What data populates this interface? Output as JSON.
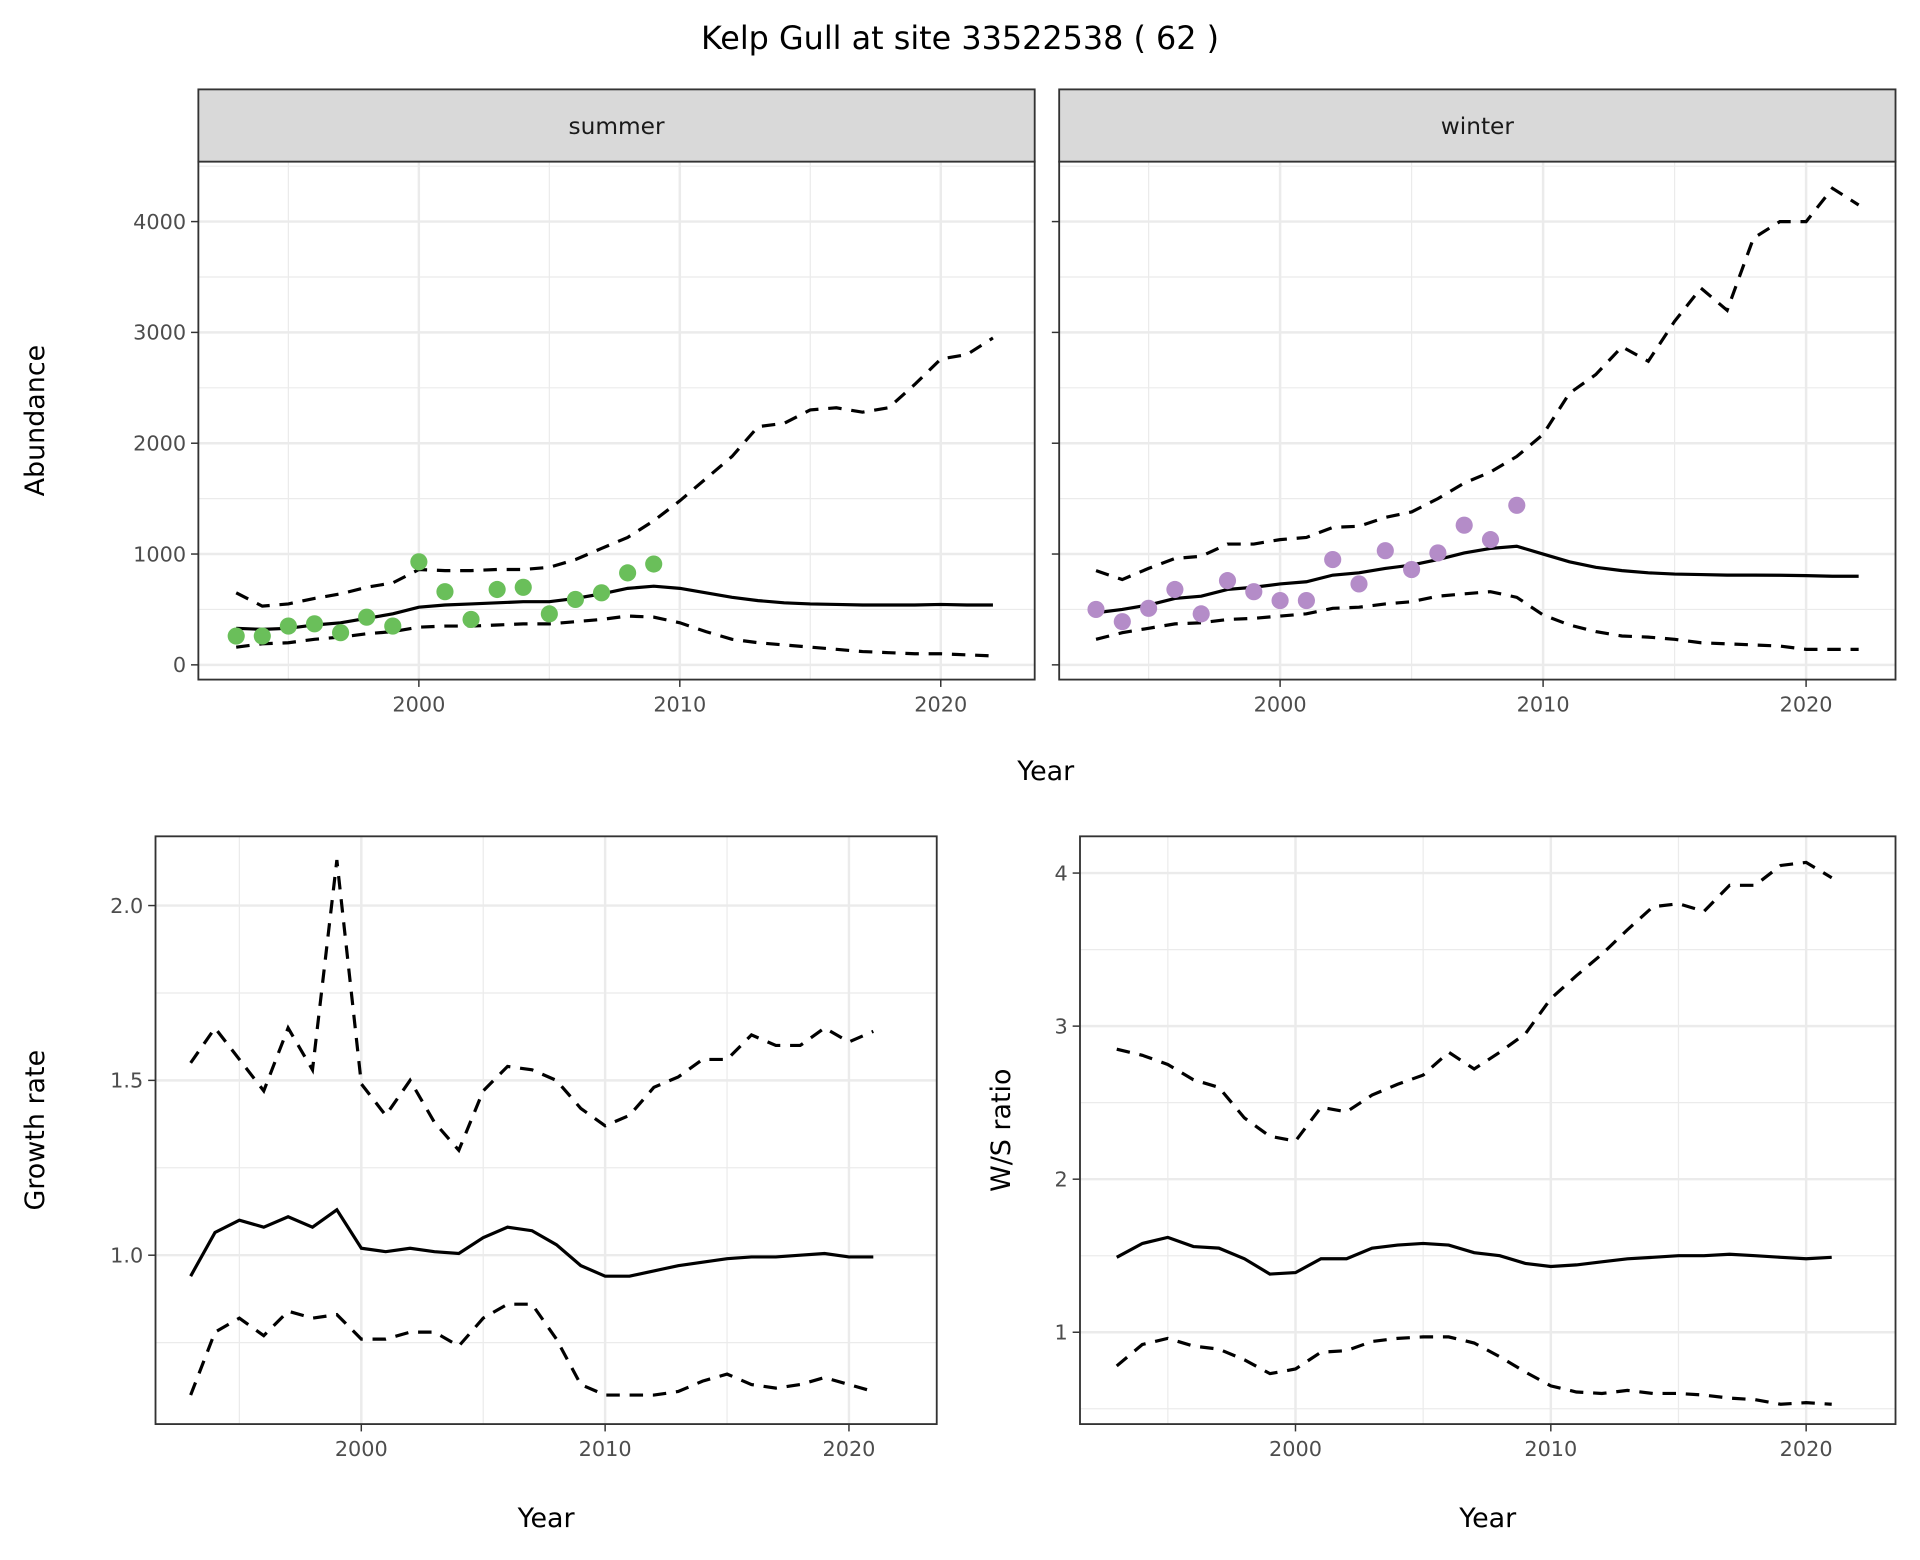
{
  "title": "Kelp Gull at site 33522538 ( 62 )",
  "colors": {
    "summer_points": "#6abf5a",
    "winter_points": "#b48cc8",
    "line": "#000000",
    "grid": "#ebebeb",
    "strip": "#d9d9d9"
  },
  "shared_xlabel": "Year",
  "chart_data": [
    {
      "type": "line",
      "facet": "summer",
      "xlabel": "",
      "ylabel": "Abundance",
      "xlim": [
        1991.55,
        2023.6
      ],
      "ylim": [
        -133,
        4541
      ],
      "grid": true,
      "xticks": [
        2000,
        2010,
        2020
      ],
      "xtick_labels": [
        "2000",
        "2010",
        "2020"
      ],
      "yticks": [
        0,
        1000,
        2000,
        3000,
        4000
      ],
      "ytick_labels": [
        "0",
        "1000",
        "2000",
        "3000",
        "4000"
      ],
      "x": [
        1993,
        1994,
        1995,
        1996,
        1997,
        1998,
        1999,
        2000,
        2001,
        2002,
        2003,
        2004,
        2005,
        2006,
        2007,
        2008,
        2009,
        2010,
        2011,
        2012,
        2013,
        2014,
        2015,
        2016,
        2017,
        2018,
        2019,
        2020,
        2021,
        2022
      ],
      "series": [
        {
          "style": "solid",
          "values": [
            330,
            320,
            330,
            360,
            380,
            420,
            460,
            520,
            540,
            550,
            560,
            570,
            570,
            600,
            640,
            690,
            710,
            690,
            650,
            610,
            580,
            560,
            550,
            545,
            540,
            540,
            540,
            545,
            540,
            540
          ]
        },
        {
          "style": "dashed",
          "values": [
            650,
            530,
            550,
            600,
            640,
            700,
            740,
            860,
            850,
            850,
            860,
            860,
            880,
            950,
            1050,
            1150,
            1300,
            1480,
            1680,
            1880,
            2150,
            2180,
            2300,
            2320,
            2280,
            2320,
            2530,
            2760,
            2800,
            2950
          ]
        },
        {
          "style": "dashed",
          "values": [
            160,
            190,
            200,
            230,
            250,
            280,
            300,
            340,
            350,
            350,
            360,
            370,
            370,
            390,
            410,
            440,
            430,
            380,
            300,
            230,
            200,
            180,
            160,
            140,
            120,
            110,
            100,
            100,
            90,
            80
          ]
        }
      ],
      "points": {
        "x": [
          1993,
          1994,
          1995,
          1996,
          1997,
          1998,
          1999,
          2000,
          2001,
          2002,
          2003,
          2004,
          2005,
          2006,
          2007,
          2008,
          2009
        ],
        "y": [
          260,
          260,
          350,
          370,
          290,
          430,
          350,
          930,
          660,
          410,
          680,
          700,
          460,
          590,
          650,
          830,
          910
        ]
      }
    },
    {
      "type": "line",
      "facet": "winter",
      "xlabel": "",
      "ylabel": "",
      "xlim": [
        1991.6,
        2023.4
      ],
      "ylim": [
        -133,
        4541
      ],
      "grid": true,
      "xticks": [
        2000,
        2010,
        2020
      ],
      "xtick_labels": [
        "2000",
        "2010",
        "2020"
      ],
      "yticks": [
        0,
        1000,
        2000,
        3000,
        4000
      ],
      "ytick_labels": [],
      "x": [
        1993,
        1994,
        1995,
        1996,
        1997,
        1998,
        1999,
        2000,
        2001,
        2002,
        2003,
        2004,
        2005,
        2006,
        2007,
        2008,
        2009,
        2010,
        2011,
        2012,
        2013,
        2014,
        2015,
        2016,
        2017,
        2018,
        2019,
        2020,
        2021,
        2022
      ],
      "series": [
        {
          "style": "solid",
          "values": [
            470,
            500,
            540,
            600,
            620,
            680,
            700,
            730,
            750,
            810,
            830,
            870,
            900,
            950,
            1010,
            1050,
            1070,
            1000,
            930,
            880,
            850,
            830,
            820,
            815,
            810,
            810,
            808,
            805,
            800,
            800
          ]
        },
        {
          "style": "dashed",
          "values": [
            850,
            770,
            870,
            960,
            980,
            1090,
            1090,
            1130,
            1150,
            1240,
            1250,
            1330,
            1380,
            1500,
            1640,
            1740,
            1880,
            2080,
            2450,
            2620,
            2870,
            2740,
            3100,
            3400,
            3200,
            3850,
            4000,
            4000,
            4300,
            4150
          ]
        },
        {
          "style": "dashed",
          "values": [
            230,
            290,
            330,
            370,
            380,
            410,
            420,
            440,
            460,
            510,
            520,
            550,
            570,
            620,
            640,
            660,
            610,
            450,
            360,
            300,
            260,
            250,
            230,
            200,
            190,
            180,
            170,
            140,
            140,
            140
          ]
        }
      ],
      "points": {
        "x": [
          1993,
          1994,
          1995,
          1996,
          1997,
          1998,
          1999,
          2000,
          2001,
          2002,
          2003,
          2004,
          2005,
          2006,
          2007,
          2008,
          2009
        ],
        "y": [
          500,
          390,
          510,
          680,
          460,
          760,
          660,
          580,
          580,
          950,
          730,
          1030,
          860,
          1010,
          1260,
          1130,
          1440
        ]
      }
    },
    {
      "type": "line",
      "xlabel": "Year",
      "ylabel": "Growth rate",
      "xlim": [
        1991.56,
        2023.6
      ],
      "ylim": [
        0.517,
        2.198
      ],
      "grid": true,
      "xticks": [
        2000,
        2010,
        2020
      ],
      "xtick_labels": [
        "2000",
        "2010",
        "2020"
      ],
      "yticks": [
        1.0,
        1.5,
        2.0
      ],
      "ytick_labels": [
        "1.0",
        "1.5",
        "2.0"
      ],
      "x": [
        1993,
        1994,
        1995,
        1996,
        1997,
        1998,
        1999,
        2000,
        2001,
        2002,
        2003,
        2004,
        2005,
        2006,
        2007,
        2008,
        2009,
        2010,
        2011,
        2012,
        2013,
        2014,
        2015,
        2016,
        2017,
        2018,
        2019,
        2020,
        2021
      ],
      "series": [
        {
          "style": "solid",
          "values": [
            0.94,
            1.065,
            1.1,
            1.08,
            1.11,
            1.08,
            1.13,
            1.02,
            1.01,
            1.02,
            1.01,
            1.005,
            1.05,
            1.08,
            1.07,
            1.03,
            0.97,
            0.94,
            0.94,
            0.955,
            0.97,
            0.98,
            0.99,
            0.995,
            0.995,
            1.0,
            1.005,
            0.995,
            0.995
          ]
        },
        {
          "style": "dashed",
          "values": [
            1.55,
            1.65,
            1.56,
            1.47,
            1.65,
            1.53,
            2.13,
            1.49,
            1.4,
            1.5,
            1.38,
            1.3,
            1.47,
            1.54,
            1.53,
            1.5,
            1.42,
            1.37,
            1.4,
            1.48,
            1.51,
            1.56,
            1.56,
            1.63,
            1.6,
            1.6,
            1.65,
            1.61,
            1.64
          ]
        },
        {
          "style": "dashed",
          "values": [
            0.6,
            0.78,
            0.82,
            0.77,
            0.84,
            0.82,
            0.83,
            0.76,
            0.76,
            0.78,
            0.78,
            0.74,
            0.82,
            0.86,
            0.86,
            0.76,
            0.63,
            0.6,
            0.6,
            0.6,
            0.61,
            0.64,
            0.66,
            0.63,
            0.62,
            0.63,
            0.65,
            0.63,
            0.61
          ]
        }
      ]
    },
    {
      "type": "line",
      "xlabel": "Year",
      "ylabel": "W/S ratio",
      "xlim": [
        1991.56,
        2023.5
      ],
      "ylim": [
        0.4,
        4.24
      ],
      "grid": true,
      "xticks": [
        2000,
        2010,
        2020
      ],
      "xtick_labels": [
        "2000",
        "2010",
        "2020"
      ],
      "yticks": [
        1,
        2,
        3,
        4
      ],
      "ytick_labels": [
        "1",
        "2",
        "3",
        "4"
      ],
      "x": [
        1993,
        1994,
        1995,
        1996,
        1997,
        1998,
        1999,
        2000,
        2001,
        2002,
        2003,
        2004,
        2005,
        2006,
        2007,
        2008,
        2009,
        2010,
        2011,
        2012,
        2013,
        2014,
        2015,
        2016,
        2017,
        2018,
        2019,
        2020,
        2021
      ],
      "series": [
        {
          "style": "solid",
          "values": [
            1.49,
            1.58,
            1.62,
            1.56,
            1.55,
            1.48,
            1.38,
            1.39,
            1.48,
            1.48,
            1.55,
            1.57,
            1.58,
            1.57,
            1.52,
            1.5,
            1.45,
            1.43,
            1.44,
            1.46,
            1.48,
            1.49,
            1.5,
            1.5,
            1.51,
            1.5,
            1.49,
            1.48,
            1.49
          ]
        },
        {
          "style": "dashed",
          "values": [
            2.85,
            2.81,
            2.75,
            2.65,
            2.6,
            2.4,
            2.28,
            2.25,
            2.47,
            2.44,
            2.55,
            2.62,
            2.68,
            2.83,
            2.72,
            2.83,
            2.95,
            3.18,
            3.33,
            3.47,
            3.63,
            3.78,
            3.8,
            3.75,
            3.92,
            3.92,
            4.05,
            4.07,
            3.97
          ]
        },
        {
          "style": "dashed",
          "values": [
            0.78,
            0.92,
            0.96,
            0.91,
            0.89,
            0.82,
            0.73,
            0.76,
            0.87,
            0.88,
            0.94,
            0.96,
            0.97,
            0.97,
            0.93,
            0.84,
            0.74,
            0.65,
            0.61,
            0.6,
            0.62,
            0.6,
            0.6,
            0.59,
            0.57,
            0.56,
            0.53,
            0.54,
            0.53
          ]
        }
      ]
    }
  ]
}
